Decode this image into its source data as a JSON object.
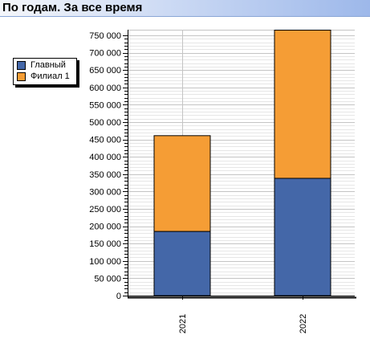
{
  "header": {
    "title": "По годам. За все время"
  },
  "chart_data": {
    "type": "bar",
    "stacked": true,
    "categories": [
      "2021",
      "2022"
    ],
    "series": [
      {
        "name": "Главный",
        "color": "#4467a8",
        "values": [
          185000,
          338000
        ]
      },
      {
        "name": "Филиал 1",
        "color": "#f59d35",
        "values": [
          276000,
          427000
        ]
      }
    ],
    "ylim": [
      0,
      750000
    ],
    "yticks": [
      "0",
      "50 000",
      "100 000",
      "150 000",
      "200 000",
      "250 000",
      "300 000",
      "350 000",
      "400 000",
      "450 000",
      "500 000",
      "550 000",
      "600 000",
      "650 000",
      "700 000",
      "750 000"
    ],
    "ytick_values": [
      0,
      50000,
      100000,
      150000,
      200000,
      250000,
      300000,
      350000,
      400000,
      450000,
      500000,
      550000,
      600000,
      650000,
      700000,
      750000
    ],
    "grid": true,
    "legend": "left",
    "xlabel": "",
    "ylabel": "",
    "title": "По годам. За все время"
  }
}
